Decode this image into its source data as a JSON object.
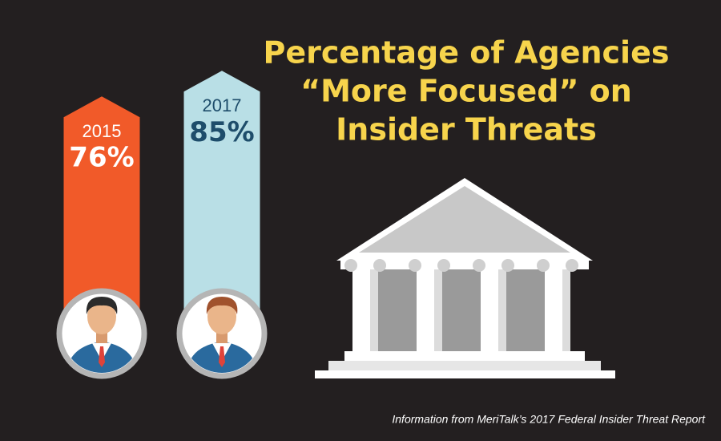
{
  "chart_data": {
    "type": "bar",
    "title": [
      "Percentage of Agencies",
      "“More Focused” on",
      "Insider Threats"
    ],
    "categories": [
      "2015",
      "2017"
    ],
    "values": [
      76,
      85
    ],
    "value_labels": [
      "76%",
      "85%"
    ],
    "colors": [
      "#f15a29",
      "#b9dfe6"
    ],
    "source": "Information from MeriTalk’s 2017 Federal Insider Threat Report"
  }
}
